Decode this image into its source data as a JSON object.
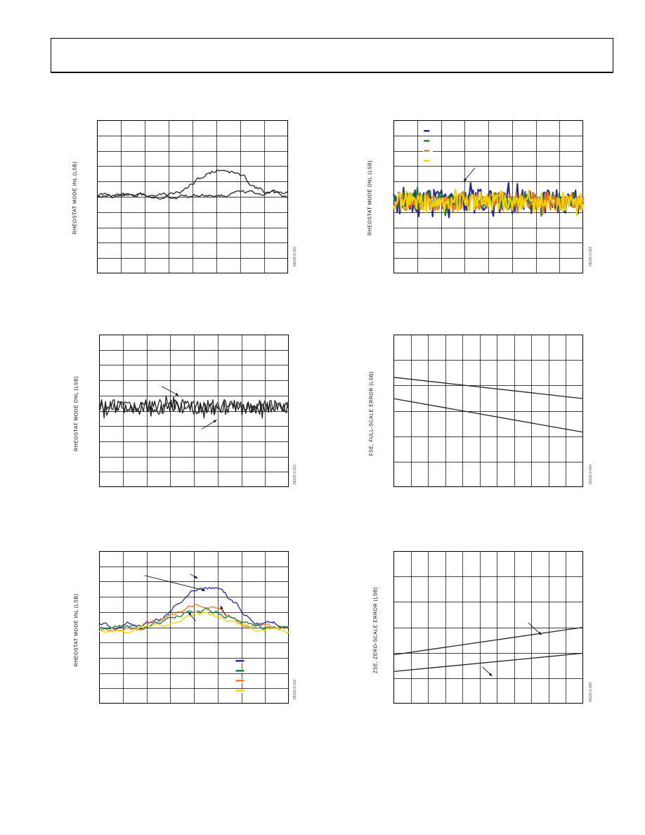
{
  "page": {
    "header": ""
  },
  "figure_ids": [
    "08226-0-020",
    "08226-0-002",
    "08226-0-021",
    "08226-0-004",
    "08226-0-022",
    "08226-0-005"
  ],
  "chart_data": [
    {
      "id": "chart1",
      "type": "line",
      "ylabel": "RHEOSTAT MODE INL (LSB)",
      "grid": true,
      "xgrid": 8,
      "ygrid": 10,
      "series": [
        {
          "color": "#222222",
          "shape": "bump",
          "seed": 11,
          "base": 0.5,
          "bump": 0.18,
          "center": 0.66,
          "width": 0.17,
          "noise": 0.012,
          "start": 0.01
        },
        {
          "color": "#222222",
          "shape": "flat",
          "seed": 17,
          "base": 0.5,
          "bump": 0.0,
          "center": 0.5,
          "width": 0.2,
          "noise": 0.01,
          "start": 0.0,
          "drift": -0.02
        }
      ],
      "arrows": []
    },
    {
      "id": "chart2",
      "type": "line",
      "ylabel": "RHEOSTAT MODE DNL (LSB)",
      "grid": true,
      "xgrid": 8,
      "ygrid": 10,
      "legend_colors": [
        "#2b2b8c",
        "#1f7a3a",
        "#f07820",
        "#f2d400"
      ],
      "series": [
        {
          "color": "#2b2b8c",
          "shape": "noise",
          "seed": 21,
          "base": 0.53,
          "noise": 0.08
        },
        {
          "color": "#1f7a3a",
          "shape": "noise",
          "seed": 22,
          "base": 0.53,
          "noise": 0.06
        },
        {
          "color": "#f07820",
          "shape": "noise",
          "seed": 23,
          "base": 0.53,
          "noise": 0.06
        },
        {
          "color": "#f2d400",
          "shape": "noise",
          "seed": 24,
          "base": 0.53,
          "noise": 0.06
        }
      ],
      "arrows": [
        [
          0.43,
          0.31,
          0.37,
          0.4
        ]
      ]
    },
    {
      "id": "chart3",
      "type": "line",
      "ylabel": "RHEOSTAT MODE DNL (LSB)",
      "grid": true,
      "xgrid": 8,
      "ygrid": 10,
      "series": [
        {
          "color": "#222222",
          "shape": "noise",
          "seed": 31,
          "base": 0.47,
          "noise": 0.045
        },
        {
          "color": "#222222",
          "shape": "noise",
          "seed": 32,
          "base": 0.48,
          "noise": 0.045
        }
      ],
      "arrows": [
        [
          0.33,
          0.34,
          0.42,
          0.4
        ],
        [
          0.54,
          0.62,
          0.62,
          0.56
        ]
      ]
    },
    {
      "id": "chart4",
      "type": "line",
      "ylabel": "FSE, FULL-SCALE ERROR (LSB)",
      "grid": true,
      "xgrid": 11,
      "ygrid": 6,
      "series": [
        {
          "color": "#222222",
          "shape": "straight",
          "y0": 0.28,
          "y1": 0.42
        },
        {
          "color": "#222222",
          "shape": "straight",
          "y0": 0.42,
          "y1": 0.64
        }
      ],
      "arrows": []
    },
    {
      "id": "chart5",
      "type": "line",
      "ylabel": "RHEOSTAT MODE INL (LSB)",
      "grid": true,
      "xgrid": 8,
      "ygrid": 10,
      "legend_colors": [
        "#2b2b8c",
        "#1f7a3a",
        "#f07820",
        "#f2d400"
      ],
      "series": [
        {
          "color": "#2b2b8c",
          "shape": "bump",
          "seed": 51,
          "base": 0.49,
          "bump": 0.26,
          "center": 0.56,
          "width": 0.2,
          "noise": 0.012,
          "start": 0.0
        },
        {
          "color": "#f07820",
          "shape": "bump",
          "seed": 52,
          "base": 0.51,
          "bump": 0.16,
          "center": 0.54,
          "width": 0.2,
          "noise": 0.01,
          "start": 0.0
        },
        {
          "color": "#1f7a3a",
          "shape": "bump",
          "seed": 53,
          "base": 0.51,
          "bump": 0.13,
          "center": 0.54,
          "width": 0.2,
          "noise": 0.01,
          "start": 0.0
        },
        {
          "color": "#f2d400",
          "shape": "bump",
          "seed": 54,
          "base": 0.52,
          "bump": 0.11,
          "center": 0.54,
          "width": 0.2,
          "noise": 0.01,
          "start": 0.0
        }
      ],
      "arrows": [
        [
          0.24,
          0.16,
          0.56,
          0.26
        ],
        [
          0.48,
          0.15,
          0.52,
          0.18
        ],
        [
          0.51,
          0.46,
          0.47,
          0.4
        ],
        [
          0.67,
          0.43,
          0.64,
          0.36
        ]
      ]
    },
    {
      "id": "chart6",
      "type": "line",
      "ylabel": "ZSE, ZERO-SCALE ERROR (LSB)",
      "grid": true,
      "xgrid": 11,
      "ygrid": 6,
      "series": [
        {
          "color": "#222222",
          "shape": "straight",
          "y0": 0.68,
          "y1": 0.5
        },
        {
          "color": "#222222",
          "shape": "straight",
          "y0": 0.79,
          "y1": 0.67
        }
      ],
      "arrows": [
        [
          0.71,
          0.47,
          0.78,
          0.55
        ],
        [
          0.47,
          0.76,
          0.52,
          0.82
        ]
      ]
    }
  ]
}
